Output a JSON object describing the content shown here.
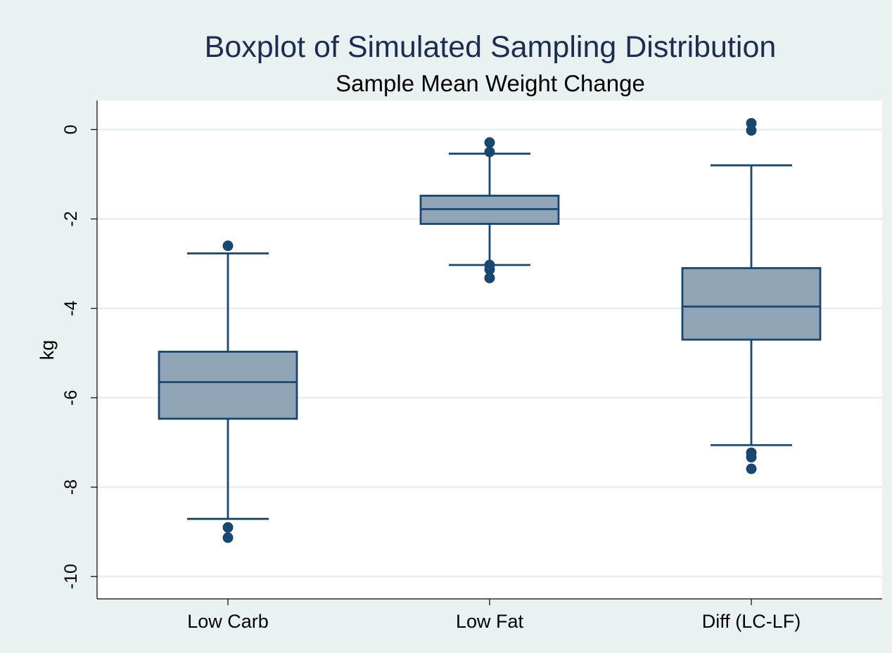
{
  "chart_data": {
    "type": "boxplot",
    "title": "Boxplot of Simulated Sampling Distribution",
    "subtitle": "Sample Mean Weight Change",
    "ylabel": "kg",
    "ylim": [
      -10.5,
      0.65
    ],
    "yticks": [
      0,
      -2,
      -4,
      -6,
      -8,
      -10
    ],
    "ytick_labels": [
      "0",
      "-2",
      "-4",
      "-6",
      "-8",
      "-10"
    ],
    "grid": true,
    "categories": [
      "Low Carb",
      "Low Fat",
      "Diff (LC-LF)"
    ],
    "boxes": [
      {
        "category": "Low Carb",
        "whisker_high": -2.77,
        "q3": -4.97,
        "median": -5.65,
        "q1": -6.47,
        "whisker_low": -8.71,
        "outliers": [
          -2.6,
          -8.9,
          -9.13
        ]
      },
      {
        "category": "Low Fat",
        "whisker_high": -0.54,
        "q3": -1.48,
        "median": -1.78,
        "q1": -2.11,
        "whisker_low": -3.03,
        "outliers": [
          -0.29,
          -0.5,
          -3.03,
          -3.13,
          -3.32
        ]
      },
      {
        "category": "Diff (LC-LF)",
        "whisker_high": -0.8,
        "q3": -3.1,
        "median": -3.96,
        "q1": -4.7,
        "whisker_low": -7.06,
        "outliers": [
          0.14,
          -0.02,
          -7.23,
          -7.33,
          -7.59
        ]
      }
    ],
    "colors": {
      "page_background": "#eaf1f3",
      "plot_background": "#ffffff",
      "grid": "#e6eef1",
      "box_fill": "#90a4b8",
      "box_stroke": "#1a476f",
      "title": "#1e2d4f",
      "text": "#000000"
    }
  }
}
